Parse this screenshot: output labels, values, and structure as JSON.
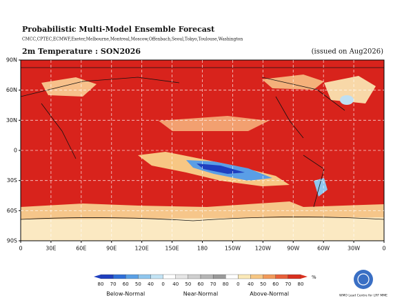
{
  "header": {
    "title": "Probabilistic Multi-Model Ensemble Forecast",
    "models": "CMCC,CPTEC,ECMWF,Exeter,Melbourne,Montreal,Moscow,Offenbach,Seoul,Tokyo,Toulouse,Washington"
  },
  "panel": {
    "title": "2m Temperature : SON2026",
    "issued": "(issued on Aug2026)"
  },
  "map": {
    "lat_labels": [
      "90N",
      "60N",
      "30N",
      "0",
      "30S",
      "60S",
      "90S"
    ],
    "lon_labels": [
      "0",
      "30E",
      "60E",
      "90E",
      "120E",
      "150E",
      "180",
      "150W",
      "120W",
      "90W",
      "60W",
      "30W",
      "0"
    ]
  },
  "legend": {
    "ticks": [
      "80",
      "70",
      "60",
      "50",
      "40",
      "0",
      "40",
      "50",
      "60",
      "70",
      "80",
      "0",
      "40",
      "50",
      "60",
      "70",
      "80"
    ],
    "unit": "%",
    "colors": [
      "#1f3fbf",
      "#2f6fd8",
      "#5aa0e6",
      "#8fc6ee",
      "#c3e4f5",
      "#ffffff",
      "#e6e6e6",
      "#cfcfcf",
      "#b5b5b5",
      "#9a9a9a",
      "#ffffff",
      "#fbe9b8",
      "#f7c784",
      "#f29a5a",
      "#e8603a",
      "#d9301f"
    ],
    "categories": [
      "Below-Normal",
      "Near-Normal",
      "Above-Normal"
    ]
  },
  "logo": {
    "text": "WMO Lead Centre for LRF MME"
  }
}
